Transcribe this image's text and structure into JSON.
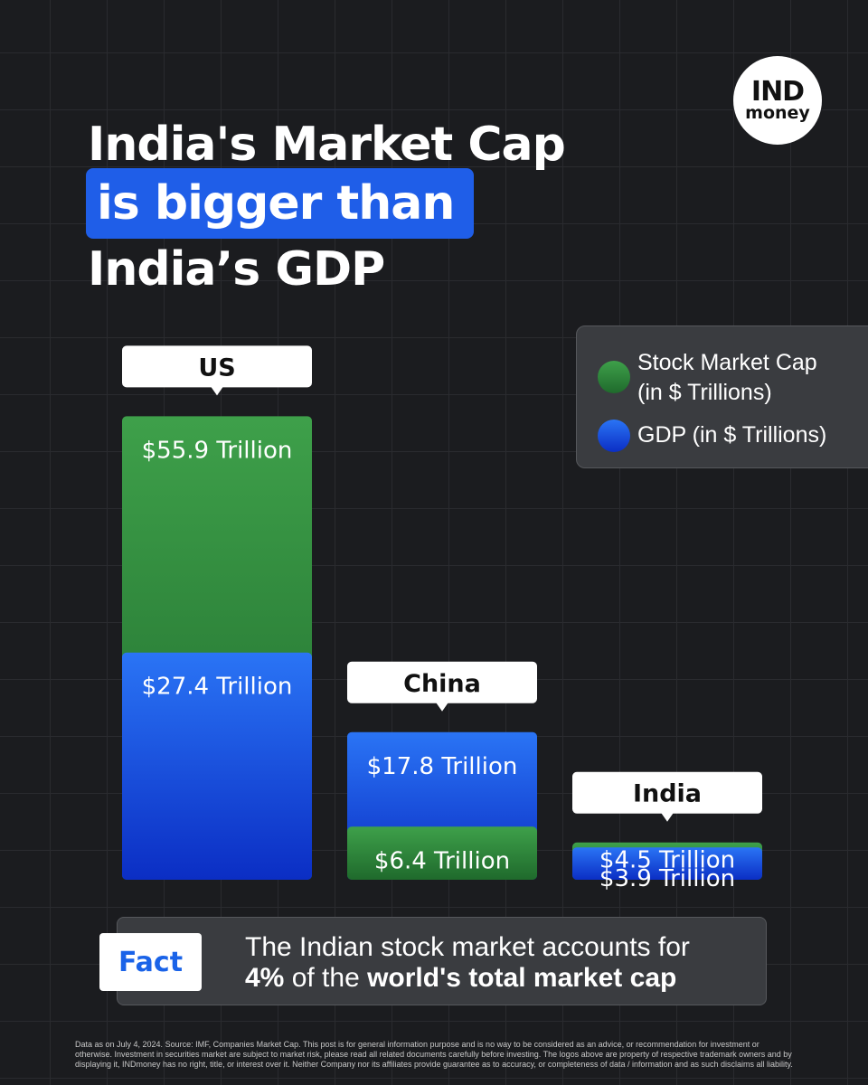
{
  "title": {
    "line1": "India's Market Cap",
    "line2": "is bigger than",
    "line3": "India’s GDP"
  },
  "logo": {
    "top": "IND",
    "bottom": "money"
  },
  "legend": {
    "market_cap_line1": "Stock Market Cap",
    "market_cap_line2": "(in $ Trillions)",
    "gdp": "GDP (in $ Trillions)"
  },
  "colors": {
    "background": "#1b1c1f",
    "market_cap_top": "#3ea04a",
    "market_cap_bottom": "#1f6a2c",
    "gdp_top": "#2a74f5",
    "gdp_bottom": "#0b2ec4",
    "highlight": "#1f5ee8"
  },
  "chart_data": {
    "type": "bar",
    "categories": [
      "US",
      "China",
      "India"
    ],
    "series": [
      {
        "name": "Stock Market Cap (in $ Trillions)",
        "values": [
          55.9,
          6.4,
          4.5
        ],
        "labels": [
          "$55.9 Trillion",
          "$6.4 Trillion",
          "$4.5 Trillion"
        ]
      },
      {
        "name": "GDP (in $ Trillions)",
        "values": [
          27.4,
          17.8,
          3.9
        ],
        "labels": [
          "$27.4 Trillion",
          "$17.8 Trillion",
          "$3.9 Trillion"
        ]
      }
    ],
    "title": "",
    "xlabel": "",
    "ylabel": ""
  },
  "fact": {
    "badge": "Fact",
    "line1": "The Indian stock market accounts for",
    "line2_pct": "4%",
    "line2_mid": " of the ",
    "line2_bold": "world's total market cap"
  },
  "disclaimer": "Data as on July 4, 2024. Source: IMF, Companies Market Cap. This post is for general information purpose and is no way to be considered as an advice, or recommendation for investment or otherwise. Investment in securities market are subject to market risk, please read all related documents carefully before investing. The logos above are property of respective trademark owners and by displaying it, INDmoney has no right, title, or interest over it. Neither Company nor its affiliates provide guarantee as to accuracy, or completeness of data / information and as such disclaims all liability."
}
